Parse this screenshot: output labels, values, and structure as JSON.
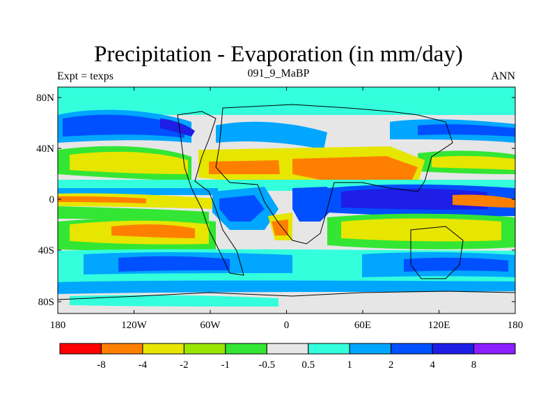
{
  "title": "Precipitation - Evaporation (in mm/day)",
  "subtitle_left": "Expt = texps",
  "subtitle_center": "091_9_MaBP",
  "subtitle_right": "ANN",
  "lat_labels": [
    "80N",
    "40N",
    "0",
    "40S",
    "80S"
  ],
  "lon_labels": [
    "180",
    "120W",
    "60W",
    "0",
    "60E",
    "120E",
    "180"
  ],
  "colorbar": {
    "colors": [
      "#ff0000",
      "#ff8000",
      "#e6e600",
      "#99e600",
      "#33e633",
      "#e6e6e6",
      "#33ffdd",
      "#00a6ff",
      "#0050ff",
      "#1e1ee6",
      "#8c1eff"
    ],
    "labels": [
      "-8",
      "-4",
      "-2",
      "-1",
      "-0.5",
      "0.5",
      "1",
      "2",
      "4",
      "8"
    ]
  },
  "palette": {
    "gray": "#e6e6e6",
    "cyan": "#33ffdd",
    "lightblue": "#00a6ff",
    "blue": "#0050ff",
    "darkblue": "#1e1ee6",
    "green": "#33e633",
    "lightgreen": "#99e600",
    "yellow": "#e6e600",
    "orange": "#ff8000"
  }
}
